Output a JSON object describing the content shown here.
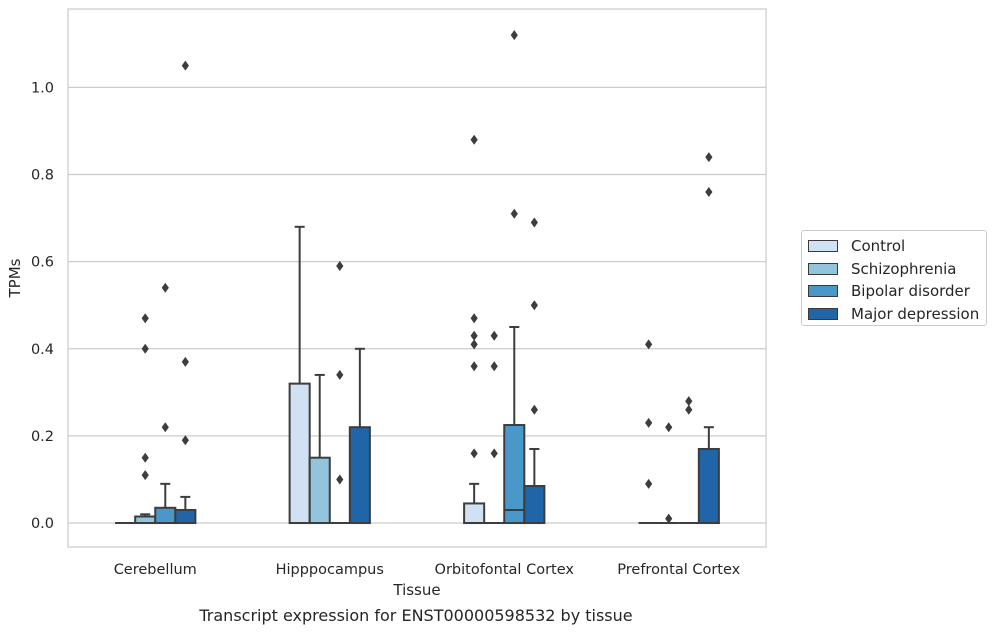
{
  "chart_data": {
    "type": "box",
    "title": "",
    "xlabel": "Tissue",
    "ylabel": "TPMs",
    "ylim": [
      -0.055,
      1.18
    ],
    "yticks": [
      "0.0",
      "0.2",
      "0.4",
      "0.6",
      "0.8",
      "1.0"
    ],
    "grid": true,
    "legend_position": "right",
    "categories": [
      "Cerebellum",
      "Hipppocampus",
      "Orbitofontal Cortex",
      "Prefrontal Cortex"
    ],
    "series": [
      {
        "name": "Control",
        "color": "#cfe1f2",
        "boxes": [
          {
            "q1": 0.0,
            "median": 0.0,
            "q3": 0.0,
            "whislo": 0.0,
            "whishi": 0.0,
            "fliers": []
          },
          {
            "q1": 0.0,
            "median": 0.0,
            "q3": 0.32,
            "whislo": 0.0,
            "whishi": 0.68,
            "fliers": []
          },
          {
            "q1": 0.0,
            "median": 0.0,
            "q3": 0.045,
            "whislo": 0.0,
            "whishi": 0.09,
            "fliers": [
              0.16,
              0.36,
              0.41,
              0.43,
              0.47,
              0.88
            ]
          },
          {
            "q1": 0.0,
            "median": 0.0,
            "q3": 0.0,
            "whislo": 0.0,
            "whishi": 0.0,
            "fliers": [
              0.09,
              0.23,
              0.41
            ]
          }
        ]
      },
      {
        "name": "Schizophrenia",
        "color": "#93c4de",
        "boxes": [
          {
            "q1": 0.0,
            "median": 0.0,
            "q3": 0.015,
            "whislo": 0.0,
            "whishi": 0.02,
            "fliers": [
              0.11,
              0.15,
              0.4,
              0.47
            ]
          },
          {
            "q1": 0.0,
            "median": 0.0,
            "q3": 0.15,
            "whislo": 0.0,
            "whishi": 0.34,
            "fliers": []
          },
          {
            "q1": 0.0,
            "median": 0.0,
            "q3": 0.0,
            "whislo": 0.0,
            "whishi": 0.0,
            "fliers": [
              0.16,
              0.36,
              0.43
            ]
          },
          {
            "q1": 0.0,
            "median": 0.0,
            "q3": 0.0,
            "whislo": 0.0,
            "whishi": 0.0,
            "fliers": [
              0.01,
              0.22
            ]
          }
        ]
      },
      {
        "name": "Bipolar disorder",
        "color": "#4a98c9",
        "boxes": [
          {
            "q1": 0.0,
            "median": 0.0,
            "q3": 0.035,
            "whislo": 0.0,
            "whishi": 0.09,
            "fliers": [
              0.22,
              0.54
            ]
          },
          {
            "q1": 0.0,
            "median": 0.0,
            "q3": 0.0,
            "whislo": 0.0,
            "whishi": 0.0,
            "fliers": [
              0.1,
              0.34,
              0.59
            ]
          },
          {
            "q1": 0.0,
            "median": 0.03,
            "q3": 0.225,
            "whislo": 0.0,
            "whishi": 0.45,
            "fliers": [
              0.71,
              1.12
            ]
          },
          {
            "q1": 0.0,
            "median": 0.0,
            "q3": 0.0,
            "whislo": 0.0,
            "whishi": 0.0,
            "fliers": [
              0.26,
              0.28
            ]
          }
        ]
      },
      {
        "name": "Major depression",
        "color": "#1f65a8",
        "boxes": [
          {
            "q1": 0.0,
            "median": 0.0,
            "q3": 0.03,
            "whislo": 0.0,
            "whishi": 0.06,
            "fliers": [
              0.19,
              0.37,
              1.05
            ]
          },
          {
            "q1": 0.0,
            "median": 0.0,
            "q3": 0.22,
            "whislo": 0.0,
            "whishi": 0.4,
            "fliers": []
          },
          {
            "q1": 0.0,
            "median": 0.0,
            "q3": 0.085,
            "whislo": 0.0,
            "whishi": 0.17,
            "fliers": [
              0.26,
              0.5,
              0.69
            ]
          },
          {
            "q1": 0.0,
            "median": 0.0,
            "q3": 0.17,
            "whislo": 0.0,
            "whishi": 0.22,
            "fliers": [
              0.76,
              0.84
            ]
          }
        ]
      }
    ]
  },
  "caption": "Transcript expression for ENST00000598532 by tissue"
}
